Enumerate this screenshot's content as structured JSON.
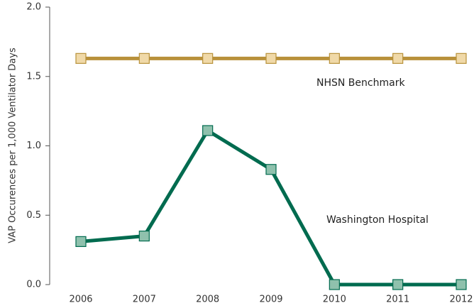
{
  "chart_data": {
    "type": "line",
    "y_label": "VAP Occurences per 1,000 Ventilator Days",
    "categories": [
      "2006",
      "2007",
      "2008",
      "2009",
      "2010",
      "2011",
      "2012"
    ],
    "series": [
      {
        "name": "NHSN Benchmark",
        "color": "#b8913a",
        "marker_color": "#f0d9a8",
        "values": [
          1.63,
          1.63,
          1.63,
          1.63,
          1.63,
          1.63,
          1.63
        ]
      },
      {
        "name": "Washington Hospital",
        "color": "#006b4f",
        "marker_color": "#8fc1ad",
        "values": [
          0.31,
          0.35,
          1.11,
          0.83,
          0,
          0,
          0
        ]
      }
    ],
    "ylim": [
      0,
      2
    ],
    "yticks": [
      {
        "value": 0,
        "label": "0.0"
      },
      {
        "value": 0.5,
        "label": "0.5"
      },
      {
        "value": 1,
        "label": "1.0"
      },
      {
        "value": 1.5,
        "label": "1.5"
      },
      {
        "value": 2,
        "label": "2.0"
      }
    ],
    "grid": false
  }
}
